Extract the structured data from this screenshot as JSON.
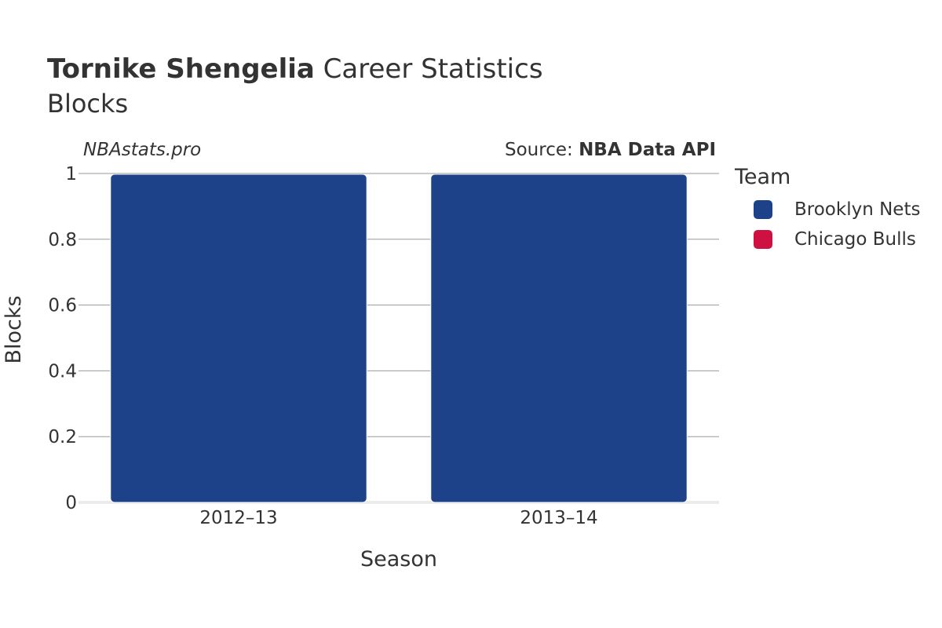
{
  "header": {
    "title_bold": "Tornike Shengelia",
    "title_rest": " Career Statistics",
    "subtitle": "Blocks",
    "watermark": "NBAstats.pro",
    "source_prefix": "Source: ",
    "source_bold": "NBA Data API"
  },
  "legend": {
    "title": "Team",
    "items": [
      {
        "label": "Brooklyn Nets",
        "color": "#1d428a"
      },
      {
        "label": "Chicago Bulls",
        "color": "#ce1141"
      }
    ]
  },
  "chart_data": {
    "type": "bar",
    "title": "Tornike Shengelia Career Statistics",
    "subtitle": "Blocks",
    "xlabel": "Season",
    "ylabel": "Blocks",
    "categories": [
      "2012–13",
      "2013–14"
    ],
    "series": [
      {
        "name": "Brooklyn Nets",
        "color": "#1d428a",
        "values": [
          1,
          1
        ]
      },
      {
        "name": "Chicago Bulls",
        "color": "#ce1141",
        "values": [
          0,
          0
        ]
      }
    ],
    "ylim": [
      0,
      1
    ],
    "yticks": [
      0,
      0.2,
      0.4,
      0.6,
      0.8,
      1
    ],
    "ytick_labels": [
      "0",
      "0.2",
      "0.4",
      "0.6",
      "0.8",
      "1"
    ],
    "grid": true,
    "legend_position": "right"
  }
}
